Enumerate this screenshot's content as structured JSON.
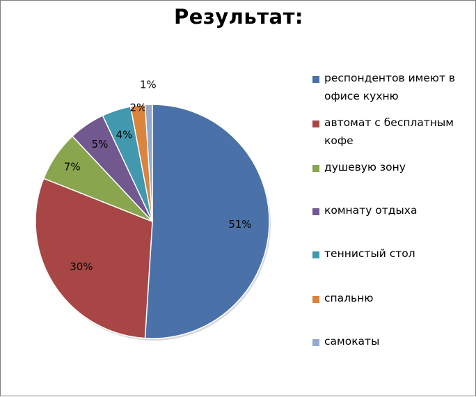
{
  "chart_data": {
    "type": "pie",
    "title": "Результат:",
    "legend_position": "right",
    "categories": [
      "респондентов имеют в офисе кухню",
      "автомат с бесплатным кофе",
      "душевую зону",
      "комнату отдыха",
      "теннистый стол",
      "спальню",
      "самокаты"
    ],
    "values": [
      51,
      30,
      7,
      5,
      4,
      2,
      1
    ],
    "labels": [
      "51%",
      "30%",
      "7%",
      "5%",
      "4%",
      "2%",
      "1%"
    ],
    "colors": [
      "#4a72a8",
      "#a84646",
      "#89a54e",
      "#71588f",
      "#4198af",
      "#db843d",
      "#93a9cf"
    ]
  }
}
